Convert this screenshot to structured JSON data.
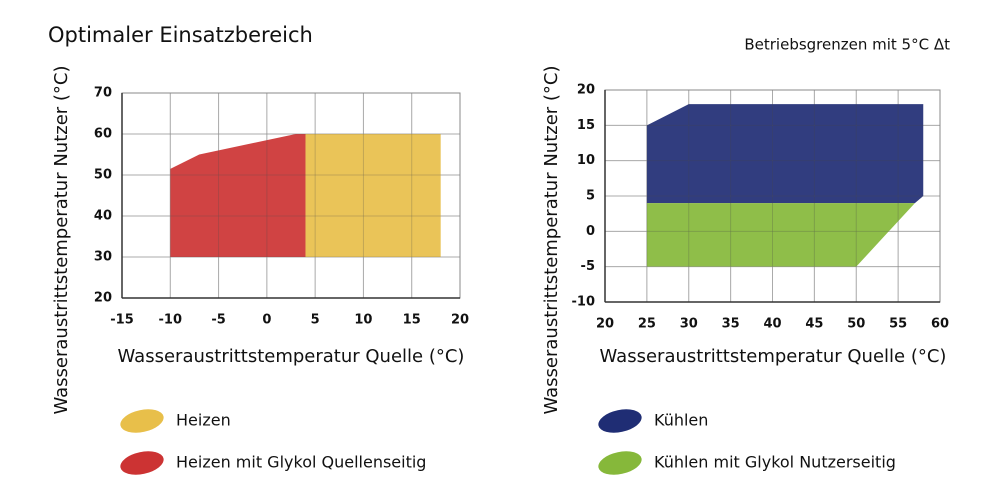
{
  "chart_data": [
    {
      "type": "area",
      "title": "Optimaler Einsatzbereich",
      "xlabel": "Wasseraustrittstemperatur Quelle (°C)",
      "ylabel": "Wasseraustrittstemperatur Nutzer (°C)",
      "xlim": [
        -15,
        20
      ],
      "ylim": [
        20,
        70
      ],
      "xticks": [
        -15,
        -10,
        -5,
        0,
        5,
        10,
        15,
        20
      ],
      "yticks": [
        20,
        30,
        40,
        50,
        60,
        70
      ],
      "grid": true,
      "series": [
        {
          "name": "Heizen",
          "color": "#e8bf4a",
          "x": [
            4,
            4,
            18,
            18
          ],
          "values": [
            30,
            60,
            60,
            30
          ]
        },
        {
          "name": "Heizen mit Glykol Quellenseitig",
          "color": "#cc3333",
          "x": [
            -10,
            -10,
            -7,
            3,
            4,
            4
          ],
          "values": [
            30,
            51.5,
            55,
            60,
            60,
            30
          ]
        }
      ]
    },
    {
      "type": "area",
      "title": "Betriebsgrenzen mit 5°C Δt",
      "xlabel": "Wasseraustrittstemperatur Quelle (°C)",
      "ylabel": "Wasseraustrittstemperatur Nutzer (°C)",
      "xlim": [
        20,
        60
      ],
      "ylim": [
        -10,
        20
      ],
      "xticks": [
        20,
        25,
        30,
        35,
        40,
        45,
        50,
        55,
        60
      ],
      "yticks": [
        -10,
        -5,
        0,
        5,
        10,
        15,
        20
      ],
      "grid": true,
      "series": [
        {
          "name": "Kühlen",
          "color": "#1f2d74",
          "x": [
            25,
            25,
            30,
            58,
            58,
            57
          ],
          "values": [
            4,
            15,
            18,
            18,
            5,
            4
          ]
        },
        {
          "name": "Kühlen mit Glykol Nutzerseitig",
          "color": "#86b83a",
          "x": [
            25,
            25,
            57,
            50
          ],
          "values": [
            -5,
            4,
            4,
            -5
          ]
        }
      ]
    }
  ]
}
